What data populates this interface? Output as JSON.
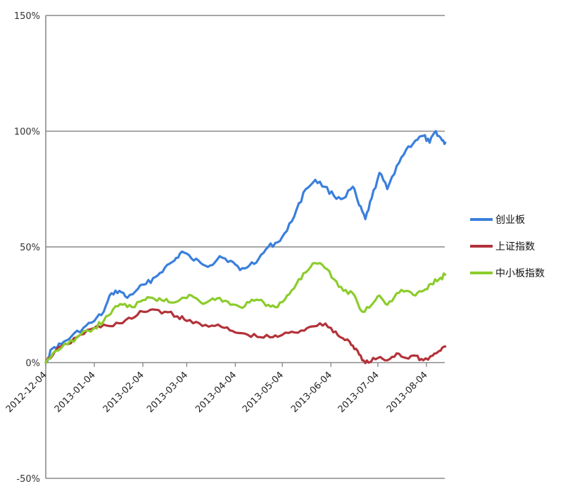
{
  "chart_data": {
    "type": "line",
    "title": "",
    "xlabel": "",
    "ylabel": "",
    "ylim": [
      -50,
      150
    ],
    "y_ticks": [
      "-50%",
      "0%",
      "50%",
      "100%",
      "150%"
    ],
    "x_ticks": [
      "2012-12-04",
      "2013-01-04",
      "2013-02-04",
      "2013-03-04",
      "2013-04-04",
      "2013-05-04",
      "2013-06-04",
      "2013-07-04",
      "2013-08-04"
    ],
    "grid": true,
    "legend_position": "right",
    "series": [
      {
        "name": "创业板",
        "color": "#3a7fdc",
        "points": [
          [
            "2012-12-04",
            0
          ],
          [
            "2012-12-08",
            6
          ],
          [
            "2012-12-14",
            8
          ],
          [
            "2012-12-20",
            11
          ],
          [
            "2012-12-28",
            15
          ],
          [
            "2013-01-04",
            18
          ],
          [
            "2013-01-10",
            22
          ],
          [
            "2013-01-15",
            30
          ],
          [
            "2013-01-20",
            31
          ],
          [
            "2013-01-25",
            28
          ],
          [
            "2013-02-01",
            32
          ],
          [
            "2013-02-06",
            34
          ],
          [
            "2013-02-12",
            37
          ],
          [
            "2013-02-18",
            41
          ],
          [
            "2013-02-24",
            44
          ],
          [
            "2013-03-01",
            48
          ],
          [
            "2013-03-07",
            45
          ],
          [
            "2013-03-13",
            43
          ],
          [
            "2013-03-19",
            42
          ],
          [
            "2013-03-25",
            46
          ],
          [
            "2013-04-01",
            44
          ],
          [
            "2013-04-07",
            40
          ],
          [
            "2013-04-13",
            42
          ],
          [
            "2013-04-19",
            45
          ],
          [
            "2013-04-25",
            50
          ],
          [
            "2013-05-01",
            52
          ],
          [
            "2013-05-07",
            57
          ],
          [
            "2013-05-13",
            66
          ],
          [
            "2013-05-19",
            75
          ],
          [
            "2013-05-25",
            79
          ],
          [
            "2013-05-31",
            76
          ],
          [
            "2013-06-06",
            72
          ],
          [
            "2013-06-12",
            71
          ],
          [
            "2013-06-18",
            76
          ],
          [
            "2013-06-22",
            68
          ],
          [
            "2013-06-26",
            62
          ],
          [
            "2013-06-30",
            71
          ],
          [
            "2013-07-05",
            82
          ],
          [
            "2013-07-10",
            75
          ],
          [
            "2013-07-16",
            85
          ],
          [
            "2013-07-22",
            92
          ],
          [
            "2013-07-28",
            96
          ],
          [
            "2013-08-02",
            98
          ],
          [
            "2013-08-06",
            95
          ],
          [
            "2013-08-10",
            100
          ],
          [
            "2013-08-14",
            96
          ],
          [
            "2013-08-16",
            95
          ]
        ]
      },
      {
        "name": "上证指数",
        "color": "#b3323a",
        "points": [
          [
            "2012-12-04",
            0
          ],
          [
            "2012-12-10",
            5
          ],
          [
            "2012-12-18",
            8
          ],
          [
            "2012-12-26",
            12
          ],
          [
            "2013-01-04",
            15
          ],
          [
            "2013-01-12",
            16
          ],
          [
            "2013-01-20",
            17
          ],
          [
            "2013-01-28",
            19
          ],
          [
            "2013-02-04",
            22
          ],
          [
            "2013-02-10",
            23
          ],
          [
            "2013-02-18",
            22
          ],
          [
            "2013-02-26",
            20
          ],
          [
            "2013-03-04",
            18
          ],
          [
            "2013-03-12",
            17
          ],
          [
            "2013-03-20",
            16
          ],
          [
            "2013-03-28",
            15
          ],
          [
            "2013-04-04",
            13
          ],
          [
            "2013-04-12",
            12
          ],
          [
            "2013-04-20",
            11
          ],
          [
            "2013-04-28",
            11
          ],
          [
            "2013-05-04",
            12
          ],
          [
            "2013-05-12",
            13
          ],
          [
            "2013-05-20",
            15
          ],
          [
            "2013-05-28",
            17
          ],
          [
            "2013-06-04",
            15
          ],
          [
            "2013-06-10",
            11
          ],
          [
            "2013-06-16",
            9
          ],
          [
            "2013-06-20",
            6
          ],
          [
            "2013-06-24",
            1
          ],
          [
            "2013-06-28",
            0
          ],
          [
            "2013-07-04",
            2
          ],
          [
            "2013-07-10",
            1
          ],
          [
            "2013-07-16",
            4
          ],
          [
            "2013-07-22",
            2
          ],
          [
            "2013-07-28",
            3
          ],
          [
            "2013-08-02",
            1
          ],
          [
            "2013-08-08",
            3
          ],
          [
            "2013-08-12",
            5
          ],
          [
            "2013-08-16",
            7
          ]
        ]
      },
      {
        "name": "中小板指数",
        "color": "#8ccc2c",
        "points": [
          [
            "2012-12-04",
            0
          ],
          [
            "2012-12-10",
            5
          ],
          [
            "2012-12-18",
            8
          ],
          [
            "2012-12-26",
            12
          ],
          [
            "2013-01-04",
            15
          ],
          [
            "2013-01-10",
            18
          ],
          [
            "2013-01-16",
            23
          ],
          [
            "2013-01-22",
            25
          ],
          [
            "2013-01-28",
            24
          ],
          [
            "2013-02-04",
            27
          ],
          [
            "2013-02-10",
            28
          ],
          [
            "2013-02-16",
            27
          ],
          [
            "2013-02-22",
            26
          ],
          [
            "2013-03-01",
            28
          ],
          [
            "2013-03-07",
            29
          ],
          [
            "2013-03-13",
            26
          ],
          [
            "2013-03-19",
            27
          ],
          [
            "2013-03-25",
            28
          ],
          [
            "2013-04-01",
            25
          ],
          [
            "2013-04-07",
            24
          ],
          [
            "2013-04-13",
            26
          ],
          [
            "2013-04-19",
            27
          ],
          [
            "2013-04-25",
            25
          ],
          [
            "2013-05-01",
            24
          ],
          [
            "2013-05-07",
            29
          ],
          [
            "2013-05-13",
            34
          ],
          [
            "2013-05-19",
            39
          ],
          [
            "2013-05-25",
            43
          ],
          [
            "2013-05-31",
            41
          ],
          [
            "2013-06-06",
            36
          ],
          [
            "2013-06-12",
            31
          ],
          [
            "2013-06-18",
            30
          ],
          [
            "2013-06-24",
            22
          ],
          [
            "2013-06-30",
            25
          ],
          [
            "2013-07-05",
            29
          ],
          [
            "2013-07-10",
            25
          ],
          [
            "2013-07-16",
            30
          ],
          [
            "2013-07-22",
            31
          ],
          [
            "2013-07-28",
            29
          ],
          [
            "2013-08-02",
            31
          ],
          [
            "2013-08-07",
            34
          ],
          [
            "2013-08-12",
            36
          ],
          [
            "2013-08-16",
            38
          ]
        ]
      }
    ]
  }
}
